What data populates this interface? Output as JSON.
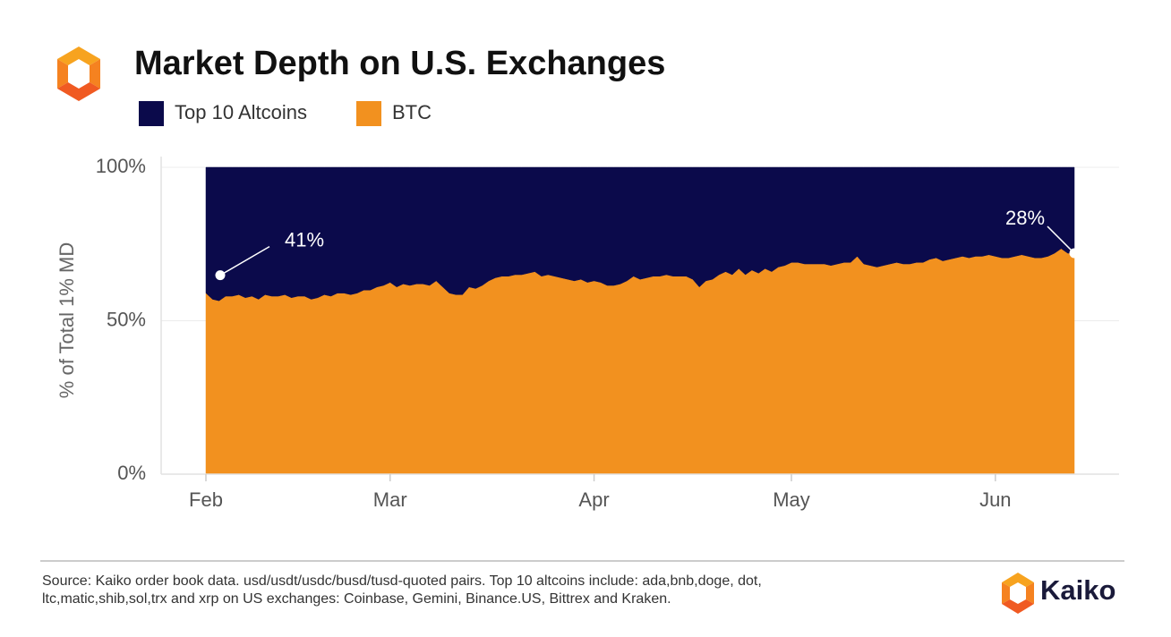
{
  "chart_data": {
    "type": "area",
    "stacked": true,
    "title": "Market Depth on U.S. Exchanges",
    "y_label": "% of Total 1% MD",
    "ylim": [
      0,
      100
    ],
    "yticks": [
      {
        "value": 0,
        "label": "0%"
      },
      {
        "value": 50,
        "label": "50%"
      },
      {
        "value": 100,
        "label": "100%"
      }
    ],
    "grid": true,
    "categories": [
      "Feb",
      null,
      null,
      null,
      null,
      null,
      null,
      null,
      null,
      null,
      null,
      null,
      null,
      null,
      null,
      null,
      null,
      null,
      null,
      null,
      null,
      null,
      null,
      null,
      null,
      null,
      null,
      null,
      "Mar",
      null,
      null,
      null,
      null,
      null,
      null,
      null,
      null,
      null,
      null,
      null,
      null,
      null,
      null,
      null,
      null,
      null,
      null,
      null,
      null,
      null,
      null,
      null,
      null,
      null,
      null,
      null,
      null,
      null,
      null,
      "Apr",
      null,
      null,
      null,
      null,
      null,
      null,
      null,
      null,
      null,
      null,
      null,
      null,
      null,
      null,
      null,
      null,
      null,
      null,
      null,
      null,
      null,
      null,
      null,
      null,
      null,
      null,
      null,
      null,
      null,
      "May",
      null,
      null,
      null,
      null,
      null,
      null,
      null,
      null,
      null,
      null,
      null,
      null,
      null,
      null,
      null,
      null,
      null,
      null,
      null,
      null,
      null,
      null,
      null,
      null,
      null,
      null,
      null,
      null,
      null,
      null,
      "Jun",
      null,
      null,
      null,
      null,
      null,
      null,
      null,
      null,
      null,
      null,
      null,
      null
    ],
    "series": [
      {
        "name": "Top 10 Altcoins",
        "color": "#0b0a4b",
        "values": [
          41,
          43,
          43.5,
          42,
          42,
          41.5,
          42.5,
          42,
          43,
          41.5,
          42,
          42,
          41.5,
          42.5,
          42,
          42,
          43,
          42.5,
          41.5,
          42,
          41,
          41,
          41.5,
          41,
          40,
          40,
          39,
          38.5,
          37.5,
          39,
          38,
          38.5,
          38,
          38,
          38.5,
          37,
          39,
          41,
          41.5,
          41.5,
          39,
          39.5,
          38.5,
          37,
          36,
          35.5,
          35.5,
          35,
          35,
          34.5,
          34,
          35.5,
          35,
          35.5,
          36,
          36.5,
          37,
          36.5,
          37.5,
          37,
          37.5,
          38.5,
          38.5,
          38,
          37,
          35.5,
          36.5,
          36,
          35.5,
          35.5,
          35,
          35.5,
          35.5,
          35.5,
          36.5,
          39,
          37,
          36.5,
          35,
          34,
          35,
          33,
          35,
          33.5,
          34.5,
          33,
          34,
          32.5,
          32,
          31,
          31,
          31.5,
          31.5,
          31.5,
          31.5,
          32,
          31.5,
          31,
          31,
          29,
          31.5,
          32,
          32.5,
          32,
          31.5,
          31,
          31.5,
          31.5,
          31,
          31,
          30,
          29.5,
          30.5,
          30,
          29.5,
          29,
          29.5,
          29,
          29,
          28.5,
          29,
          29.5,
          29.5,
          29,
          28.5,
          29,
          29.5,
          29.5,
          29,
          28,
          26.5,
          28,
          28
        ]
      },
      {
        "name": "BTC",
        "color": "#f2911f",
        "values": [
          59,
          57,
          56.5,
          58,
          58,
          58.5,
          57.5,
          58,
          57,
          58.5,
          58,
          58,
          58.5,
          57.5,
          58,
          58,
          57,
          57.5,
          58.5,
          58,
          59,
          59,
          58.5,
          59,
          60,
          60,
          61,
          61.5,
          62.5,
          61,
          62,
          61.5,
          62,
          62,
          61.5,
          63,
          61,
          59,
          58.5,
          58.5,
          61,
          60.5,
          61.5,
          63,
          64,
          64.5,
          64.5,
          65,
          65,
          65.5,
          66,
          64.5,
          65,
          64.5,
          64,
          63.5,
          63,
          63.5,
          62.5,
          63,
          62.5,
          61.5,
          61.5,
          62,
          63,
          64.5,
          63.5,
          64,
          64.5,
          64.5,
          65,
          64.5,
          64.5,
          64.5,
          63.5,
          61,
          63,
          63.5,
          65,
          66,
          65,
          67,
          65,
          66.5,
          65.5,
          67,
          66,
          67.5,
          68,
          69,
          69,
          68.5,
          68.5,
          68.5,
          68.5,
          68,
          68.5,
          69,
          69,
          71,
          68.5,
          68,
          67.5,
          68,
          68.5,
          69,
          68.5,
          68.5,
          69,
          69,
          70,
          70.5,
          69.5,
          70,
          70.5,
          71,
          70.5,
          71,
          71,
          71.5,
          71,
          70.5,
          70.5,
          71,
          71.5,
          71,
          70.5,
          70.5,
          71,
          72,
          73.5,
          72,
          72
        ]
      }
    ],
    "annotations": [
      "41%",
      "28%"
    ],
    "source": [
      "Source: Kaiko order book data. usd/usdt/usdc/busd/tusd-quoted pairs. Top 10 altcoins include: ada,bnb,doge, dot,",
      "ltc,matic,shib,sol,trx and xrp on US exchanges: Coinbase, Gemini, Binance.US, Bittrex and Kraken."
    ],
    "brand": "Kaiko"
  }
}
